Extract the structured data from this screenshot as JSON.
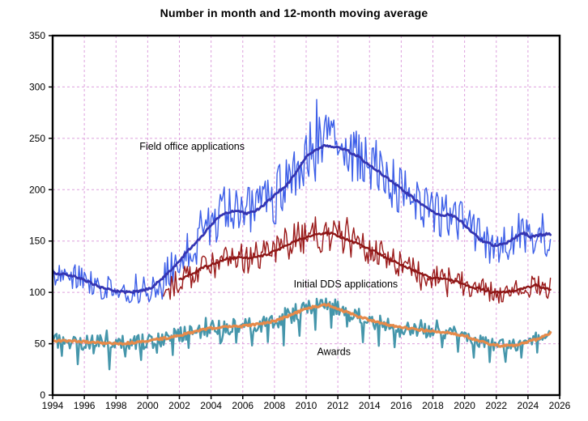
{
  "chart_data": {
    "type": "line",
    "title": "Number in month and 12-month moving average",
    "x_axis": {
      "min": 1994,
      "max": 2026,
      "tick_interval": 2,
      "ticks": [
        1994,
        1996,
        1998,
        2000,
        2002,
        2004,
        2006,
        2008,
        2010,
        2012,
        2014,
        2016,
        2018,
        2020,
        2022,
        2024,
        2026
      ]
    },
    "y_axis": {
      "min": 0,
      "max": 350,
      "tick_interval": 50,
      "ticks": [
        0,
        50,
        100,
        150,
        200,
        250,
        300,
        350
      ]
    },
    "grid": {
      "show": true,
      "color": "#dda0dd",
      "style": "dashed"
    },
    "frame_color": "#000000",
    "legend_position": "none",
    "annotations": [
      {
        "id": "field-office-label",
        "text": "Field office applications",
        "year": 2002.8,
        "value": 242
      },
      {
        "id": "initial-dds-label",
        "text": "Initial DDS applications",
        "year": 2012.5,
        "value": 108
      },
      {
        "id": "awards-label",
        "text": "Awards",
        "year": 2011.75,
        "value": 42
      }
    ],
    "series": [
      {
        "name": "Field office applications",
        "monthly_color": "#3d5fe8",
        "ma_color": "#3535b2",
        "monthly_width": 1.4,
        "ma_width": 2.8,
        "seed": 17,
        "monthly_start": 1994.0,
        "ma_start": 1994.0,
        "end": 2025.42,
        "ma_keypoints": [
          [
            1994,
            119
          ],
          [
            1995,
            117
          ],
          [
            1996,
            112
          ],
          [
            1997,
            105
          ],
          [
            1998,
            101
          ],
          [
            1998.8,
            100
          ],
          [
            1999.5,
            101
          ],
          [
            2000.2,
            104
          ],
          [
            2001,
            115
          ],
          [
            2001.8,
            127
          ],
          [
            2002.5,
            140
          ],
          [
            2003.2,
            151
          ],
          [
            2003.8,
            162
          ],
          [
            2004.4,
            172
          ],
          [
            2005,
            178
          ],
          [
            2005.6,
            179
          ],
          [
            2006.2,
            177
          ],
          [
            2006.8,
            179
          ],
          [
            2007.4,
            186
          ],
          [
            2008,
            195
          ],
          [
            2008.8,
            205
          ],
          [
            2009.4,
            217
          ],
          [
            2010,
            232
          ],
          [
            2010.6,
            239
          ],
          [
            2011.2,
            243
          ],
          [
            2011.8,
            242
          ],
          [
            2012.5,
            239
          ],
          [
            2013.2,
            233
          ],
          [
            2014,
            224
          ],
          [
            2015,
            213
          ],
          [
            2016,
            201
          ],
          [
            2017,
            189
          ],
          [
            2017.8,
            180
          ],
          [
            2018.5,
            175
          ],
          [
            2019.1,
            176
          ],
          [
            2019.7,
            170
          ],
          [
            2020.4,
            160
          ],
          [
            2021,
            151
          ],
          [
            2021.8,
            146
          ],
          [
            2022.5,
            147
          ],
          [
            2023.2,
            153
          ],
          [
            2023.7,
            158
          ],
          [
            2024.2,
            154
          ],
          [
            2024.8,
            156
          ],
          [
            2025.42,
            157
          ]
        ],
        "noise_keypoints": [
          [
            1994,
            14
          ],
          [
            1997,
            12
          ],
          [
            1999,
            11
          ],
          [
            2001,
            16
          ],
          [
            2003,
            22
          ],
          [
            2005,
            24
          ],
          [
            2007,
            26
          ],
          [
            2009,
            32
          ],
          [
            2011,
            34
          ],
          [
            2013,
            30
          ],
          [
            2015,
            26
          ],
          [
            2017,
            24
          ],
          [
            2019,
            22
          ],
          [
            2021,
            20
          ],
          [
            2023,
            20
          ],
          [
            2025.42,
            22
          ]
        ]
      },
      {
        "name": "Initial DDS applications",
        "monthly_color": "#9b1b1b",
        "ma_color": "#8e1616",
        "monthly_width": 1.4,
        "ma_width": 2.4,
        "seed": 29,
        "monthly_start": 2001.0,
        "ma_start": 2002.0,
        "end": 2025.42,
        "ma_keypoints": [
          [
            2001,
            105
          ],
          [
            2002,
            112
          ],
          [
            2002.8,
            118
          ],
          [
            2003.5,
            124
          ],
          [
            2004.3,
            129
          ],
          [
            2005,
            133
          ],
          [
            2005.8,
            134
          ],
          [
            2006.5,
            133
          ],
          [
            2007.3,
            136
          ],
          [
            2008,
            140
          ],
          [
            2008.8,
            146
          ],
          [
            2009.5,
            151
          ],
          [
            2010.3,
            155
          ],
          [
            2011,
            157
          ],
          [
            2011.5,
            158
          ],
          [
            2012,
            155
          ],
          [
            2012.8,
            150
          ],
          [
            2013.5,
            146
          ],
          [
            2014.3,
            140
          ],
          [
            2015,
            134
          ],
          [
            2016,
            127
          ],
          [
            2017,
            120
          ],
          [
            2018,
            114
          ],
          [
            2019,
            112
          ],
          [
            2019.6,
            110
          ],
          [
            2020.3,
            106
          ],
          [
            2021,
            103
          ],
          [
            2021.8,
            100
          ],
          [
            2022.5,
            100
          ],
          [
            2023.3,
            102
          ],
          [
            2024,
            105
          ],
          [
            2024.5,
            107
          ],
          [
            2025,
            104
          ],
          [
            2025.42,
            103
          ]
        ],
        "noise_keypoints": [
          [
            2001,
            15
          ],
          [
            2003,
            14
          ],
          [
            2005,
            14
          ],
          [
            2007,
            15
          ],
          [
            2009,
            18
          ],
          [
            2011,
            18
          ],
          [
            2013,
            16
          ],
          [
            2015,
            14
          ],
          [
            2017,
            13
          ],
          [
            2019,
            12
          ],
          [
            2021,
            11
          ],
          [
            2023,
            11
          ],
          [
            2025.42,
            11
          ]
        ]
      },
      {
        "name": "Awards",
        "monthly_color": "#4596ab",
        "ma_color": "#e68a4a",
        "monthly_width": 2.4,
        "ma_width": 3.2,
        "seed": 41,
        "seasonal_dip": true,
        "seasonal_month": 7,
        "monthly_start": 1994.0,
        "ma_start": 1994.0,
        "end": 2025.42,
        "ma_keypoints": [
          [
            1994,
            53
          ],
          [
            1995,
            53
          ],
          [
            1996,
            52
          ],
          [
            1997,
            51
          ],
          [
            1998,
            50
          ],
          [
            1999,
            51
          ],
          [
            2000,
            53
          ],
          [
            2001,
            55
          ],
          [
            2002,
            58
          ],
          [
            2003,
            62
          ],
          [
            2004,
            65
          ],
          [
            2005,
            67
          ],
          [
            2006,
            67
          ],
          [
            2007,
            69
          ],
          [
            2008,
            72
          ],
          [
            2009,
            78
          ],
          [
            2010,
            84
          ],
          [
            2010.8,
            87
          ],
          [
            2011.4,
            88
          ],
          [
            2012,
            84
          ],
          [
            2013,
            78
          ],
          [
            2014,
            73
          ],
          [
            2015,
            69
          ],
          [
            2016,
            66
          ],
          [
            2017,
            64
          ],
          [
            2018,
            62
          ],
          [
            2019,
            61
          ],
          [
            2020,
            58
          ],
          [
            2020.8,
            53
          ],
          [
            2021.5,
            50
          ],
          [
            2022.3,
            48
          ],
          [
            2023,
            48
          ],
          [
            2023.8,
            51
          ],
          [
            2024.5,
            54
          ],
          [
            2025.42,
            60
          ]
        ],
        "noise_keypoints": [
          [
            1994,
            8
          ],
          [
            1998,
            8
          ],
          [
            2002,
            8
          ],
          [
            2006,
            8
          ],
          [
            2009,
            9
          ],
          [
            2011,
            9
          ],
          [
            2013,
            8
          ],
          [
            2016,
            7
          ],
          [
            2019,
            7
          ],
          [
            2021,
            7
          ],
          [
            2023,
            6
          ],
          [
            2025.42,
            5
          ]
        ]
      }
    ]
  }
}
